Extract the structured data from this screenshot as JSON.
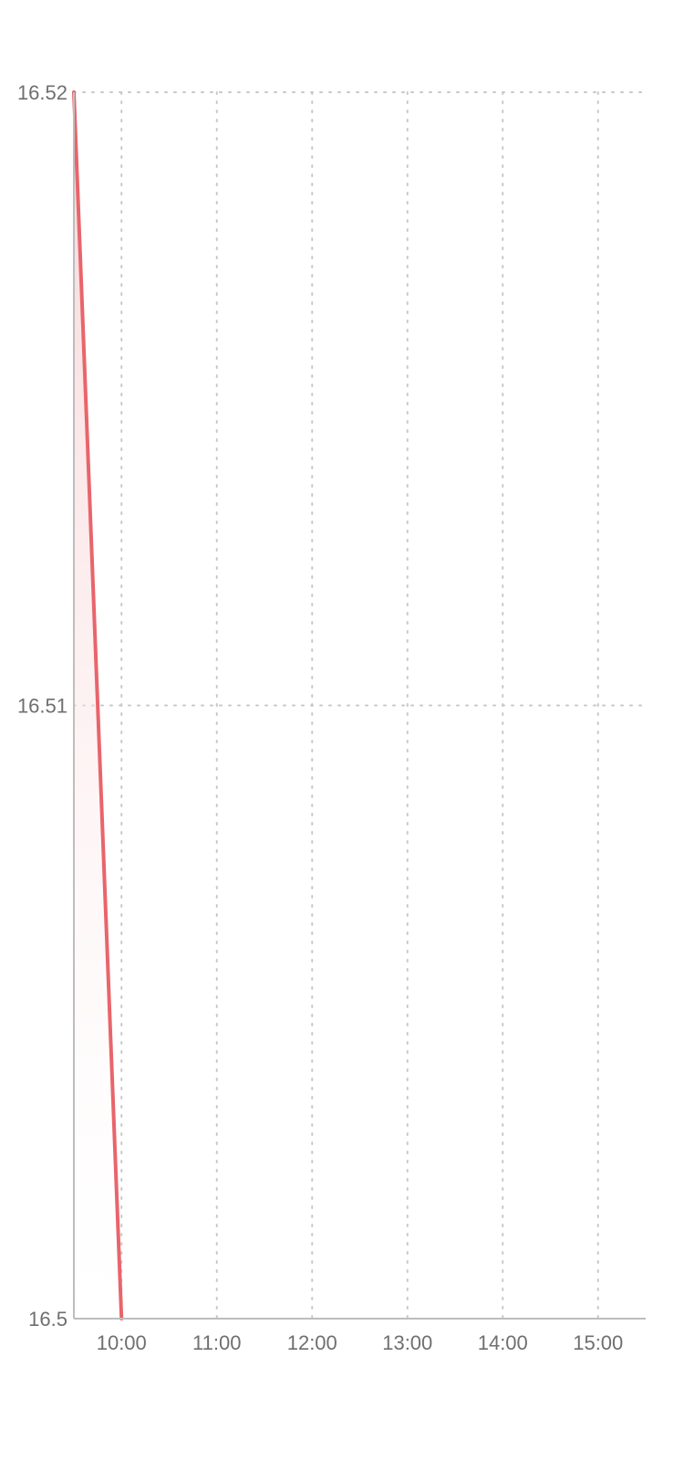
{
  "chart_data": {
    "type": "area",
    "title": "",
    "xlabel": "",
    "ylabel": "",
    "x_ticks": [
      "10:00",
      "11:00",
      "12:00",
      "13:00",
      "14:00",
      "15:00"
    ],
    "y_ticks": [
      "16.5",
      "16.51",
      "16.52"
    ],
    "y_tick_values": [
      16.5,
      16.51,
      16.52
    ],
    "ylim": [
      16.5,
      16.52
    ],
    "xlim": [
      "09:30",
      "15:30"
    ],
    "grid": true,
    "legend": "none",
    "series": [
      {
        "x": [
          "09:30",
          "10:00"
        ],
        "y": [
          16.52,
          16.5
        ]
      }
    ],
    "colors": {
      "line": "#e8656b",
      "fill_top": "#f7c8ca",
      "grid": "#c8c8c8",
      "axis": "#bdbdbd",
      "tick_text": "#6f6f6f"
    }
  }
}
